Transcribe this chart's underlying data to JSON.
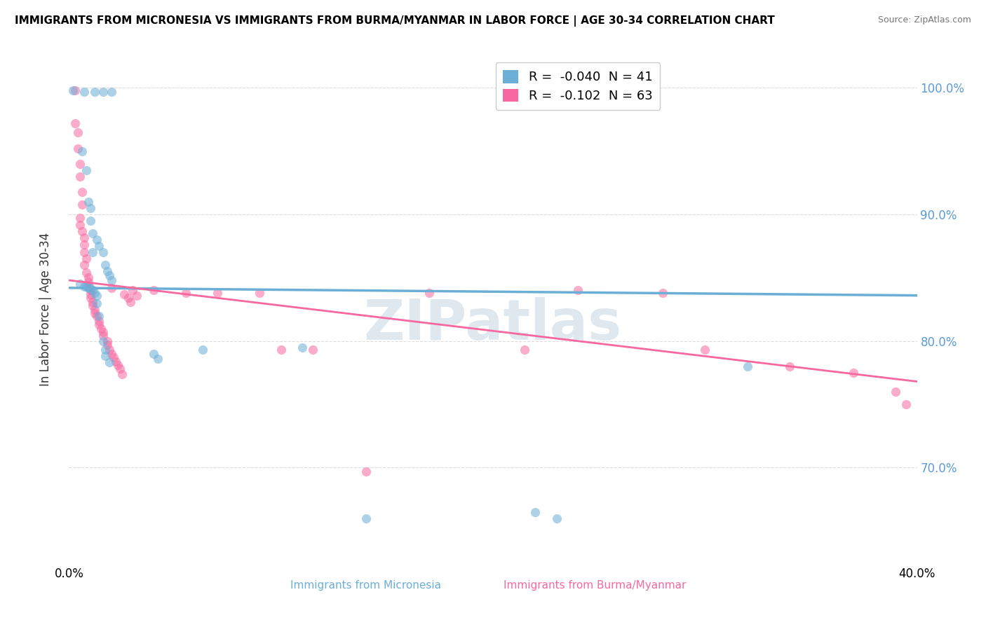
{
  "title": "IMMIGRANTS FROM MICRONESIA VS IMMIGRANTS FROM BURMA/MYANMAR IN LABOR FORCE | AGE 30-34 CORRELATION CHART",
  "source": "Source: ZipAtlas.com",
  "ylabel": "In Labor Force | Age 30-34",
  "y_tick_vals": [
    0.7,
    0.8,
    0.9,
    1.0
  ],
  "x_lim": [
    0.0,
    0.4
  ],
  "y_lim": [
    0.625,
    1.025
  ],
  "legend_entries": [
    {
      "label": "R =  -0.040  N = 41",
      "color": "#6baed6"
    },
    {
      "label": "R =  -0.102  N = 63",
      "color": "#f768a1"
    }
  ],
  "watermark": "ZIPatlas",
  "blue_color": "#6baed6",
  "pink_color": "#f768a1",
  "blue_scatter": [
    [
      0.002,
      0.998
    ],
    [
      0.007,
      0.997
    ],
    [
      0.012,
      0.997
    ],
    [
      0.016,
      0.997
    ],
    [
      0.02,
      0.997
    ],
    [
      0.006,
      0.95
    ],
    [
      0.008,
      0.935
    ],
    [
      0.009,
      0.91
    ],
    [
      0.01,
      0.905
    ],
    [
      0.01,
      0.895
    ],
    [
      0.011,
      0.885
    ],
    [
      0.011,
      0.87
    ],
    [
      0.013,
      0.88
    ],
    [
      0.014,
      0.875
    ],
    [
      0.016,
      0.87
    ],
    [
      0.017,
      0.86
    ],
    [
      0.018,
      0.855
    ],
    [
      0.019,
      0.852
    ],
    [
      0.02,
      0.848
    ],
    [
      0.005,
      0.845
    ],
    [
      0.007,
      0.843
    ],
    [
      0.008,
      0.843
    ],
    [
      0.009,
      0.842
    ],
    [
      0.01,
      0.842
    ],
    [
      0.011,
      0.84
    ],
    [
      0.012,
      0.838
    ],
    [
      0.013,
      0.836
    ],
    [
      0.013,
      0.83
    ],
    [
      0.014,
      0.82
    ],
    [
      0.016,
      0.8
    ],
    [
      0.017,
      0.793
    ],
    [
      0.017,
      0.788
    ],
    [
      0.019,
      0.783
    ],
    [
      0.04,
      0.79
    ],
    [
      0.042,
      0.786
    ],
    [
      0.063,
      0.793
    ],
    [
      0.11,
      0.795
    ],
    [
      0.14,
      0.66
    ],
    [
      0.22,
      0.665
    ],
    [
      0.23,
      0.66
    ],
    [
      0.32,
      0.78
    ]
  ],
  "pink_scatter": [
    [
      0.003,
      0.998
    ],
    [
      0.003,
      0.972
    ],
    [
      0.004,
      0.965
    ],
    [
      0.004,
      0.952
    ],
    [
      0.005,
      0.94
    ],
    [
      0.005,
      0.93
    ],
    [
      0.006,
      0.918
    ],
    [
      0.006,
      0.908
    ],
    [
      0.005,
      0.897
    ],
    [
      0.005,
      0.892
    ],
    [
      0.006,
      0.887
    ],
    [
      0.007,
      0.882
    ],
    [
      0.007,
      0.876
    ],
    [
      0.007,
      0.87
    ],
    [
      0.008,
      0.865
    ],
    [
      0.007,
      0.86
    ],
    [
      0.008,
      0.854
    ],
    [
      0.009,
      0.85
    ],
    [
      0.009,
      0.847
    ],
    [
      0.009,
      0.843
    ],
    [
      0.01,
      0.84
    ],
    [
      0.01,
      0.837
    ],
    [
      0.01,
      0.834
    ],
    [
      0.011,
      0.831
    ],
    [
      0.011,
      0.828
    ],
    [
      0.012,
      0.825
    ],
    [
      0.012,
      0.822
    ],
    [
      0.013,
      0.82
    ],
    [
      0.014,
      0.816
    ],
    [
      0.014,
      0.813
    ],
    [
      0.015,
      0.81
    ],
    [
      0.016,
      0.807
    ],
    [
      0.016,
      0.804
    ],
    [
      0.018,
      0.8
    ],
    [
      0.018,
      0.797
    ],
    [
      0.019,
      0.793
    ],
    [
      0.02,
      0.79
    ],
    [
      0.021,
      0.787
    ],
    [
      0.022,
      0.784
    ],
    [
      0.023,
      0.781
    ],
    [
      0.024,
      0.778
    ],
    [
      0.025,
      0.774
    ],
    [
      0.03,
      0.84
    ],
    [
      0.032,
      0.836
    ],
    [
      0.04,
      0.84
    ],
    [
      0.055,
      0.838
    ],
    [
      0.07,
      0.838
    ],
    [
      0.09,
      0.838
    ],
    [
      0.1,
      0.793
    ],
    [
      0.115,
      0.793
    ],
    [
      0.14,
      0.697
    ],
    [
      0.17,
      0.838
    ],
    [
      0.215,
      0.793
    ],
    [
      0.24,
      0.84
    ],
    [
      0.28,
      0.838
    ],
    [
      0.3,
      0.793
    ],
    [
      0.34,
      0.78
    ],
    [
      0.37,
      0.775
    ],
    [
      0.39,
      0.76
    ],
    [
      0.395,
      0.75
    ],
    [
      0.02,
      0.842
    ],
    [
      0.026,
      0.837
    ],
    [
      0.028,
      0.834
    ],
    [
      0.029,
      0.831
    ]
  ],
  "blue_line_x": [
    0.0,
    0.4
  ],
  "blue_line_y": [
    0.842,
    0.836
  ],
  "pink_line_x": [
    0.0,
    0.4
  ],
  "pink_line_y": [
    0.848,
    0.768
  ],
  "grid_color": "#dddddd",
  "bg_color": "#ffffff",
  "right_tick_color": "#5b9bd5",
  "left_tick_color": "#555555"
}
